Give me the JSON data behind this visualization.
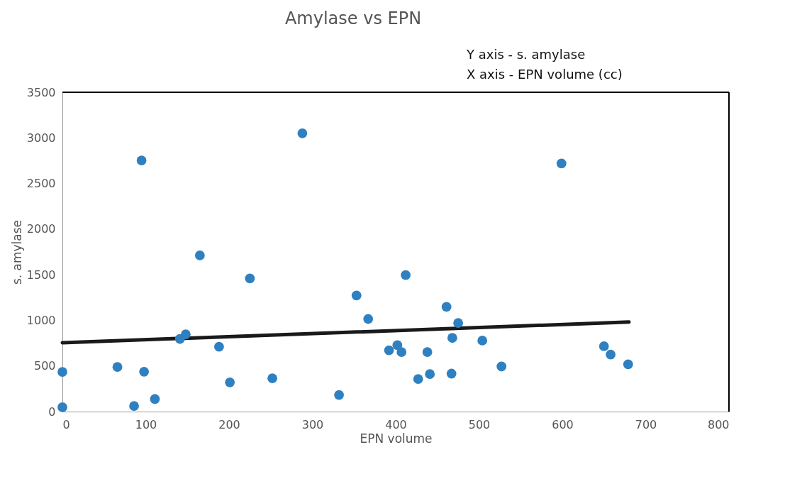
{
  "chart_data": {
    "type": "scatter",
    "title": "Amylase vs EPN",
    "xlabel": "EPN volume",
    "ylabel": "s. amylase",
    "annotations": [
      "Y axis -  s. amylase",
      "X axis -  EPN volume (cc)"
    ],
    "series": [
      {
        "color": "#2f80c0",
        "marker": "circle",
        "x": [
          0,
          0,
          66,
          95,
          98,
          86,
          111,
          165,
          141,
          148,
          188,
          201,
          225,
          252,
          288,
          332,
          353,
          367,
          392,
          402,
          407,
          412,
          427,
          438,
          441,
          461,
          467,
          468,
          475,
          504,
          527,
          599,
          650,
          658,
          679
        ],
        "values": [
          435,
          47,
          489,
          2753,
          437,
          62,
          138,
          1712,
          796,
          846,
          710,
          320,
          1460,
          364,
          3050,
          182,
          1272,
          1015,
          671,
          729,
          653,
          1496,
          356,
          653,
          411,
          1148,
          416,
          807,
          971,
          778,
          494,
          2719,
          716,
          625,
          518
        ]
      },
      {
        "type": "line",
        "color": "#1a1a1a",
        "marker": "none",
        "line_style": "solid",
        "x": [
          0,
          680
        ],
        "values": [
          755,
          981
        ]
      }
    ],
    "xlim": [
      0,
      800
    ],
    "ylim": [
      0,
      3500
    ],
    "xticks": [
      0,
      100,
      200,
      300,
      400,
      500,
      600,
      700,
      800
    ],
    "yticks": [
      0,
      500,
      1000,
      1500,
      2000,
      2500,
      3000,
      3500
    ],
    "grid": false
  }
}
